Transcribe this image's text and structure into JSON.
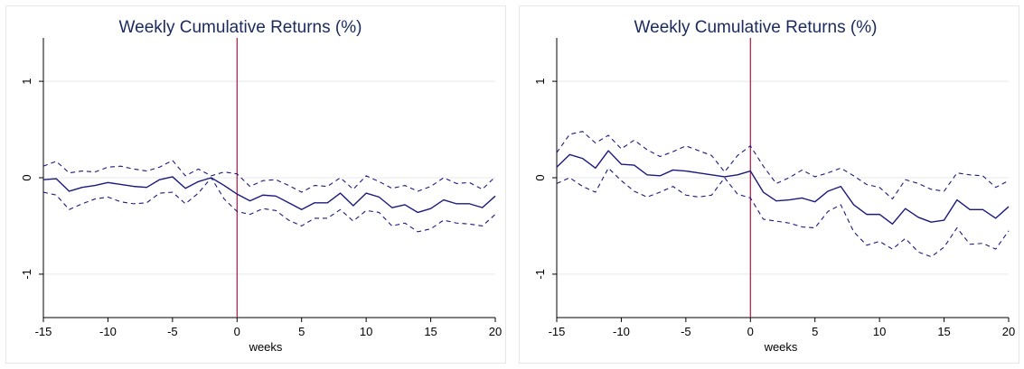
{
  "colors": {
    "line": "#1a1a7e",
    "event_line": "#b3123b",
    "grid": "#e8e8e8",
    "axis": "#000000",
    "frame": "#e6e6e6",
    "title": "#1a2a5e"
  },
  "chart_data": [
    {
      "type": "line",
      "title": "Weekly Cumulative Returns (%)",
      "xlabel": "weeks",
      "ylabel": "",
      "xlim": [
        -15,
        20
      ],
      "ylim": [
        -1.45,
        1.45
      ],
      "xticks": [
        -15,
        -10,
        -5,
        0,
        5,
        10,
        15,
        20
      ],
      "yticks": [
        -1,
        0,
        1
      ],
      "xtick_labels": [
        "-15",
        "-10",
        "-5",
        "0",
        "5",
        "10",
        "15",
        "20"
      ],
      "ytick_labels": [
        "-1",
        "0",
        "1"
      ],
      "grid": true,
      "event_line_x": 0,
      "x": [
        -15,
        -14,
        -13,
        -12,
        -11,
        -10,
        -9,
        -8,
        -7,
        -6,
        -5,
        -4,
        -3,
        -2,
        -1,
        0,
        1,
        2,
        3,
        4,
        5,
        6,
        7,
        8,
        9,
        10,
        11,
        12,
        13,
        14,
        15,
        16,
        17,
        18,
        19,
        20
      ],
      "series": [
        {
          "style": "solid",
          "values": [
            -0.02,
            -0.01,
            -0.14,
            -0.1,
            -0.08,
            -0.05,
            -0.07,
            -0.09,
            -0.1,
            -0.02,
            0.01,
            -0.11,
            -0.04,
            0.0,
            -0.08,
            -0.17,
            -0.24,
            -0.18,
            -0.19,
            -0.26,
            -0.33,
            -0.26,
            -0.26,
            -0.16,
            -0.29,
            -0.16,
            -0.2,
            -0.31,
            -0.28,
            -0.36,
            -0.32,
            -0.23,
            -0.27,
            -0.27,
            -0.31,
            -0.19
          ]
        },
        {
          "style": "dashed",
          "values": [
            0.12,
            0.17,
            0.05,
            0.07,
            0.06,
            0.11,
            0.12,
            0.09,
            0.07,
            0.11,
            0.18,
            0.02,
            0.09,
            0.02,
            0.06,
            0.04,
            -0.09,
            -0.03,
            -0.02,
            -0.08,
            -0.15,
            -0.08,
            -0.09,
            0.0,
            -0.12,
            0.02,
            -0.04,
            -0.11,
            -0.08,
            -0.14,
            -0.09,
            0.0,
            -0.06,
            -0.05,
            -0.12,
            0.01
          ]
        },
        {
          "style": "dashed",
          "values": [
            -0.15,
            -0.18,
            -0.33,
            -0.27,
            -0.22,
            -0.2,
            -0.25,
            -0.27,
            -0.26,
            -0.16,
            -0.15,
            -0.27,
            -0.16,
            0.0,
            -0.22,
            -0.35,
            -0.38,
            -0.32,
            -0.34,
            -0.44,
            -0.5,
            -0.42,
            -0.42,
            -0.33,
            -0.45,
            -0.34,
            -0.36,
            -0.5,
            -0.47,
            -0.56,
            -0.53,
            -0.44,
            -0.47,
            -0.48,
            -0.5,
            -0.38
          ]
        }
      ]
    },
    {
      "type": "line",
      "title": "Weekly Cumulative Returns (%)",
      "xlabel": "weeks",
      "ylabel": "",
      "xlim": [
        -15,
        20
      ],
      "ylim": [
        -1.45,
        1.45
      ],
      "xticks": [
        -15,
        -10,
        -5,
        0,
        5,
        10,
        15,
        20
      ],
      "yticks": [
        -1,
        0,
        1
      ],
      "xtick_labels": [
        "-15",
        "-10",
        "-5",
        "0",
        "5",
        "10",
        "15",
        "20"
      ],
      "ytick_labels": [
        "-1",
        "0",
        "1"
      ],
      "grid": true,
      "event_line_x": 0,
      "x": [
        -15,
        -14,
        -13,
        -12,
        -11,
        -10,
        -9,
        -8,
        -7,
        -6,
        -5,
        -4,
        -3,
        -2,
        -1,
        0,
        1,
        2,
        3,
        4,
        5,
        6,
        7,
        8,
        9,
        10,
        11,
        12,
        13,
        14,
        15,
        16,
        17,
        18,
        19,
        20
      ],
      "series": [
        {
          "style": "solid",
          "values": [
            0.11,
            0.24,
            0.2,
            0.1,
            0.28,
            0.14,
            0.13,
            0.03,
            0.02,
            0.08,
            0.07,
            0.05,
            0.03,
            0.01,
            0.03,
            0.07,
            -0.15,
            -0.24,
            -0.23,
            -0.21,
            -0.25,
            -0.14,
            -0.09,
            -0.28,
            -0.38,
            -0.38,
            -0.48,
            -0.32,
            -0.41,
            -0.46,
            -0.44,
            -0.23,
            -0.33,
            -0.33,
            -0.42,
            -0.3
          ]
        },
        {
          "style": "dashed",
          "values": [
            0.26,
            0.45,
            0.48,
            0.36,
            0.44,
            0.3,
            0.39,
            0.29,
            0.22,
            0.27,
            0.33,
            0.28,
            0.23,
            0.06,
            0.23,
            0.33,
            0.12,
            -0.06,
            0.0,
            0.08,
            0.01,
            0.05,
            0.1,
            0.02,
            -0.07,
            -0.1,
            -0.22,
            -0.02,
            -0.06,
            -0.12,
            -0.14,
            0.05,
            0.03,
            0.02,
            -0.1,
            -0.03
          ]
        },
        {
          "style": "dashed",
          "values": [
            -0.06,
            0.0,
            -0.09,
            -0.15,
            0.1,
            -0.03,
            -0.14,
            -0.2,
            -0.15,
            -0.09,
            -0.18,
            -0.2,
            -0.18,
            0.0,
            -0.17,
            -0.21,
            -0.43,
            -0.45,
            -0.47,
            -0.51,
            -0.52,
            -0.35,
            -0.28,
            -0.56,
            -0.7,
            -0.66,
            -0.74,
            -0.63,
            -0.77,
            -0.82,
            -0.72,
            -0.52,
            -0.69,
            -0.68,
            -0.74,
            -0.55
          ]
        }
      ]
    }
  ]
}
